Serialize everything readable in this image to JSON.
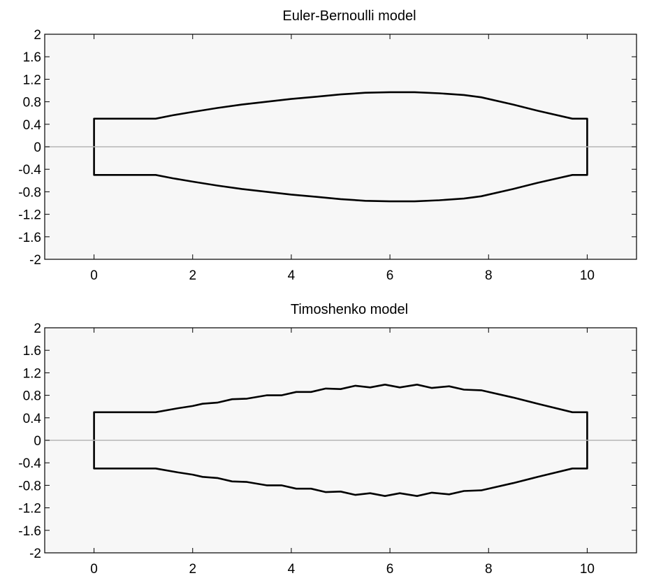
{
  "chart_data": [
    {
      "type": "line",
      "title": "Euler-Bernoulli model",
      "xlabel": "",
      "ylabel": "",
      "xlim": [
        -1,
        11
      ],
      "ylim": [
        -2,
        2
      ],
      "xticks": [
        0,
        2,
        4,
        6,
        8,
        10
      ],
      "xtick_labels": [
        "0",
        "2",
        "4",
        "6",
        "8",
        "10"
      ],
      "yticks": [
        2,
        1.6,
        1.2,
        0.8,
        0.4,
        0,
        -0.4,
        -0.8,
        -1.2,
        -1.6,
        -2
      ],
      "ytick_labels": [
        "2",
        "1.6",
        "1.2",
        "0.8",
        "0.4",
        "0",
        "-0.4",
        "-0.8",
        "-1.2",
        "-1.6",
        "-2"
      ],
      "grid": false,
      "legend": "none",
      "colors": {
        "profile": "#000000",
        "zero_line": "#b5b5b5",
        "axes_background": "#f7f7f7"
      },
      "series": [
        {
          "x": [
            0,
            0,
            1.25,
            1.6,
            2.0,
            2.5,
            3.0,
            3.5,
            4.0,
            4.5,
            5.0,
            5.5,
            6.0,
            6.5,
            7.0,
            7.5,
            7.85,
            8.5,
            9.0,
            9.7,
            10,
            10
          ],
          "y": [
            0,
            0.5,
            0.5,
            0.56,
            0.62,
            0.69,
            0.75,
            0.8,
            0.85,
            0.89,
            0.93,
            0.96,
            0.97,
            0.97,
            0.95,
            0.92,
            0.88,
            0.75,
            0.64,
            0.5,
            0.5,
            0
          ]
        },
        {
          "x": [
            0,
            0,
            1.25,
            1.6,
            2.0,
            2.5,
            3.0,
            3.5,
            4.0,
            4.5,
            5.0,
            5.5,
            6.0,
            6.5,
            7.0,
            7.5,
            7.85,
            8.5,
            9.0,
            9.7,
            10,
            10
          ],
          "y": [
            0,
            -0.5,
            -0.5,
            -0.56,
            -0.62,
            -0.69,
            -0.75,
            -0.8,
            -0.85,
            -0.89,
            -0.93,
            -0.96,
            -0.97,
            -0.97,
            -0.95,
            -0.92,
            -0.88,
            -0.75,
            -0.64,
            -0.5,
            -0.5,
            0
          ]
        },
        {
          "x": [
            -1,
            11
          ],
          "y": [
            0,
            0
          ]
        }
      ]
    },
    {
      "type": "line",
      "title": "Timoshenko model",
      "xlabel": "",
      "ylabel": "",
      "xlim": [
        -1,
        11
      ],
      "ylim": [
        -2,
        2
      ],
      "xticks": [
        0,
        2,
        4,
        6,
        8,
        10
      ],
      "xtick_labels": [
        "0",
        "2",
        "4",
        "6",
        "8",
        "10"
      ],
      "yticks": [
        2,
        1.6,
        1.2,
        0.8,
        0.4,
        0,
        -0.4,
        -0.8,
        -1.2,
        -1.6,
        -2
      ],
      "ytick_labels": [
        "2",
        "1.6",
        "1.2",
        "0.8",
        "0.4",
        "0",
        "-0.4",
        "-0.8",
        "-1.2",
        "-1.6",
        "-2"
      ],
      "grid": false,
      "legend": "none",
      "colors": {
        "profile": "#000000",
        "zero_line": "#b5b5b5",
        "axes_background": "#f7f7f7"
      },
      "series": [
        {
          "x": [
            0,
            0,
            1.25,
            1.7,
            2.0,
            2.2,
            2.5,
            2.8,
            3.1,
            3.5,
            3.8,
            4.1,
            4.4,
            4.7,
            5.0,
            5.3,
            5.6,
            5.9,
            6.2,
            6.55,
            6.85,
            7.2,
            7.5,
            7.85,
            8.5,
            9.0,
            9.7,
            10,
            10
          ],
          "y": [
            0,
            0.5,
            0.5,
            0.57,
            0.61,
            0.65,
            0.67,
            0.73,
            0.74,
            0.8,
            0.8,
            0.86,
            0.86,
            0.92,
            0.91,
            0.97,
            0.94,
            0.99,
            0.94,
            0.99,
            0.93,
            0.96,
            0.9,
            0.89,
            0.76,
            0.65,
            0.5,
            0.5,
            0
          ]
        },
        {
          "x": [
            0,
            0,
            1.25,
            1.7,
            2.0,
            2.2,
            2.5,
            2.8,
            3.1,
            3.5,
            3.8,
            4.1,
            4.4,
            4.7,
            5.0,
            5.3,
            5.6,
            5.9,
            6.2,
            6.55,
            6.85,
            7.2,
            7.5,
            7.85,
            8.5,
            9.0,
            9.7,
            10,
            10
          ],
          "y": [
            0,
            -0.5,
            -0.5,
            -0.57,
            -0.61,
            -0.65,
            -0.67,
            -0.73,
            -0.74,
            -0.8,
            -0.8,
            -0.86,
            -0.86,
            -0.92,
            -0.91,
            -0.97,
            -0.94,
            -0.99,
            -0.94,
            -0.99,
            -0.93,
            -0.96,
            -0.9,
            -0.89,
            -0.76,
            -0.65,
            -0.5,
            -0.5,
            0
          ]
        },
        {
          "x": [
            -1,
            11
          ],
          "y": [
            0,
            0
          ]
        }
      ]
    }
  ]
}
